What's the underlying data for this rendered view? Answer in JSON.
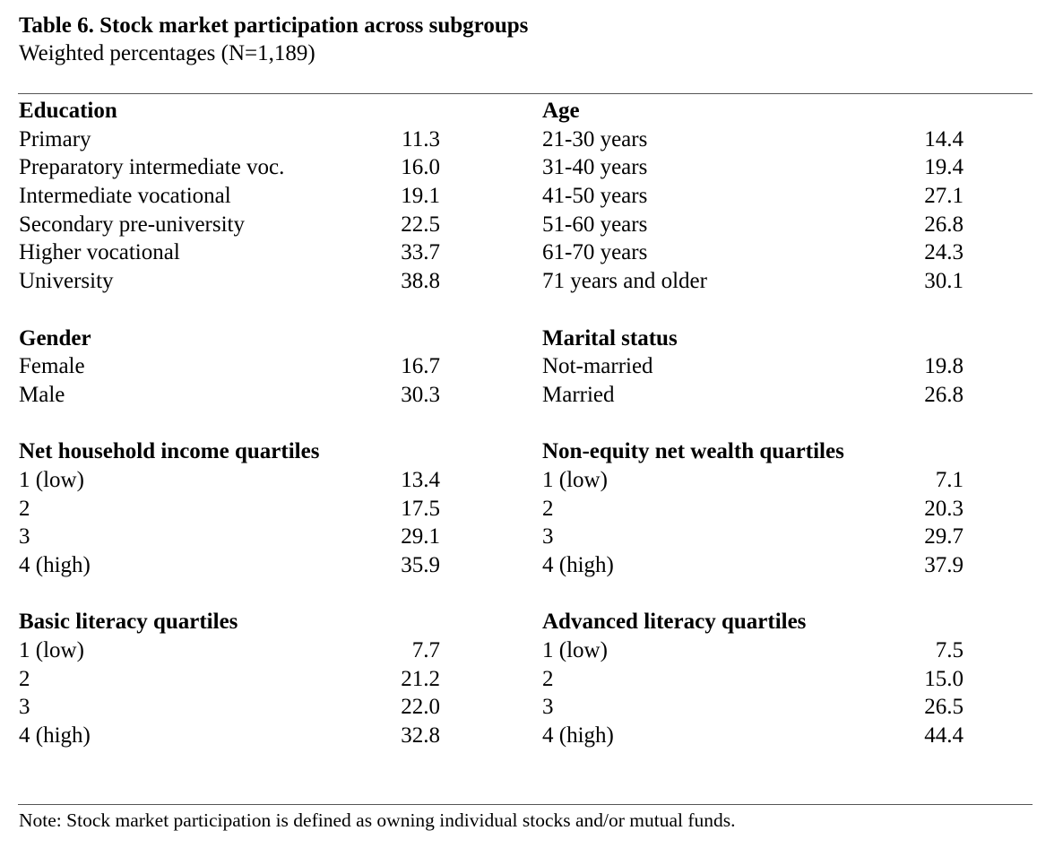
{
  "title": "Table 6. Stock market participation across subgroups",
  "subtitle": "Weighted percentages (N=1,189)",
  "left_column": [
    {
      "heading": "Education",
      "rows": [
        {
          "label": "Primary",
          "value": "11.3"
        },
        {
          "label": "Preparatory intermediate voc.",
          "value": "16.0"
        },
        {
          "label": "Intermediate vocational",
          "value": "19.1"
        },
        {
          "label": "Secondary pre-university",
          "value": "22.5"
        },
        {
          "label": "Higher vocational",
          "value": "33.7"
        },
        {
          "label": "University",
          "value": "38.8"
        }
      ]
    },
    {
      "heading": "Gender",
      "rows": [
        {
          "label": "Female",
          "value": "16.7"
        },
        {
          "label": "Male",
          "value": "30.3"
        }
      ]
    },
    {
      "heading": "Net household income quartiles",
      "rows": [
        {
          "label": "1 (low)",
          "value": "13.4"
        },
        {
          "label": "2",
          "value": "17.5"
        },
        {
          "label": "3",
          "value": "29.1"
        },
        {
          "label": "4 (high)",
          "value": "35.9"
        }
      ]
    },
    {
      "heading": "Basic literacy quartiles",
      "rows": [
        {
          "label": "1 (low)",
          "value": "7.7"
        },
        {
          "label": "2",
          "value": "21.2"
        },
        {
          "label": "3",
          "value": "22.0"
        },
        {
          "label": "4 (high)",
          "value": "32.8"
        }
      ]
    }
  ],
  "right_column": [
    {
      "heading": "Age",
      "rows": [
        {
          "label": "21-30 years",
          "value": "14.4"
        },
        {
          "label": "31-40 years",
          "value": "19.4"
        },
        {
          "label": "41-50 years",
          "value": "27.1"
        },
        {
          "label": "51-60 years",
          "value": "26.8"
        },
        {
          "label": "61-70 years",
          "value": "24.3"
        },
        {
          "label": "71 years and older",
          "value": "30.1"
        }
      ]
    },
    {
      "heading": "Marital status",
      "rows": [
        {
          "label": "Not-married",
          "value": "19.8"
        },
        {
          "label": "Married",
          "value": "26.8"
        }
      ]
    },
    {
      "heading": "Non-equity net wealth quartiles",
      "rows": [
        {
          "label": "1 (low)",
          "value": "7.1"
        },
        {
          "label": "2",
          "value": "20.3"
        },
        {
          "label": "3",
          "value": "29.7"
        },
        {
          "label": "4 (high)",
          "value": "37.9"
        }
      ]
    },
    {
      "heading": "Advanced literacy quartiles",
      "rows": [
        {
          "label": "1 (low)",
          "value": "7.5"
        },
        {
          "label": "2",
          "value": "15.0"
        },
        {
          "label": "3",
          "value": "26.5"
        },
        {
          "label": "4 (high)",
          "value": "44.4"
        }
      ]
    }
  ],
  "note": "Note: Stock market participation is defined as owning individual stocks and/or mutual funds."
}
